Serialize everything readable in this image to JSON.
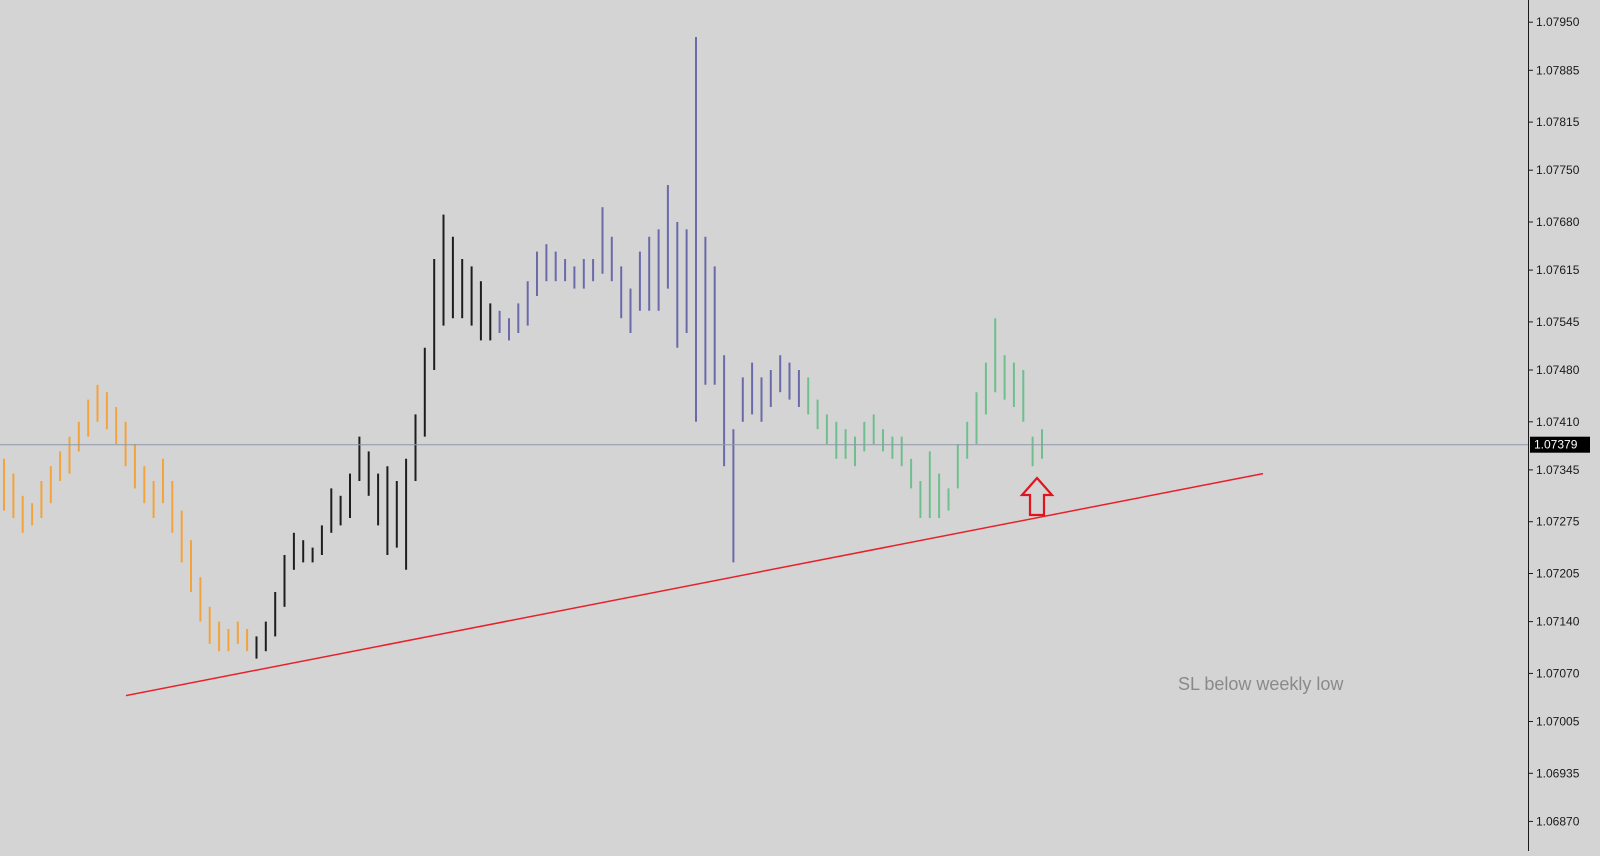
{
  "chart_data": {
    "type": "bar",
    "ylim": [
      1.0683,
      1.0798
    ],
    "grid": false,
    "legend": "none",
    "y_ticks": [
      "1.07950",
      "1.07885",
      "1.07815",
      "1.07750",
      "1.07680",
      "1.07615",
      "1.07545",
      "1.07480",
      "1.07410",
      "1.07345",
      "1.07275",
      "1.07205",
      "1.07140",
      "1.07070",
      "1.07005",
      "1.06935",
      "1.06870"
    ],
    "current_price": {
      "label": "1.07379",
      "value": 1.07379
    },
    "annotation": {
      "text": "SL below weekly low"
    },
    "trendline": {
      "x": [
        0.0,
        1.0
      ],
      "y": [
        1.0704,
        1.0734
      ],
      "note": "x normalised to bar index range"
    },
    "colors": {
      "background": "#d4d4d4",
      "axis": "#1a1a1a",
      "current_line": "#8c98a8",
      "trendline": "#e8202a",
      "arrow": "#e0141e",
      "annotation": "#8a8a8a",
      "series": [
        "#f4a23c",
        "#1e1e1e",
        "#6a6aaa",
        "#6fbf8e"
      ]
    },
    "series": [
      {
        "color_index": 0,
        "bars": [
          [
            1.0736,
            1.0729
          ],
          [
            1.0734,
            1.0728
          ],
          [
            1.0731,
            1.0726
          ],
          [
            1.073,
            1.0727
          ],
          [
            1.0733,
            1.0728
          ],
          [
            1.0735,
            1.073
          ],
          [
            1.0737,
            1.0733
          ],
          [
            1.0739,
            1.0734
          ],
          [
            1.0741,
            1.0737
          ],
          [
            1.0744,
            1.0739
          ],
          [
            1.0746,
            1.0741
          ],
          [
            1.0745,
            1.074
          ],
          [
            1.0743,
            1.0738
          ],
          [
            1.0741,
            1.0735
          ],
          [
            1.0738,
            1.0732
          ],
          [
            1.0735,
            1.073
          ],
          [
            1.0733,
            1.0728
          ],
          [
            1.0736,
            1.073
          ],
          [
            1.0733,
            1.0726
          ],
          [
            1.0729,
            1.0722
          ],
          [
            1.0725,
            1.0718
          ],
          [
            1.072,
            1.0714
          ],
          [
            1.0716,
            1.0711
          ],
          [
            1.0714,
            1.071
          ],
          [
            1.0713,
            1.071
          ],
          [
            1.0714,
            1.0711
          ],
          [
            1.0713,
            1.071
          ]
        ]
      },
      {
        "color_index": 1,
        "bars": [
          [
            1.0712,
            1.0709
          ],
          [
            1.0714,
            1.071
          ],
          [
            1.0718,
            1.0712
          ],
          [
            1.0723,
            1.0716
          ],
          [
            1.0726,
            1.0721
          ],
          [
            1.0725,
            1.0722
          ],
          [
            1.0724,
            1.0722
          ],
          [
            1.0727,
            1.0723
          ],
          [
            1.0732,
            1.0726
          ],
          [
            1.0731,
            1.0727
          ],
          [
            1.0734,
            1.0728
          ],
          [
            1.0739,
            1.0733
          ],
          [
            1.0737,
            1.0731
          ],
          [
            1.0734,
            1.0727
          ],
          [
            1.0735,
            1.0723
          ],
          [
            1.0733,
            1.0724
          ],
          [
            1.0736,
            1.0721
          ],
          [
            1.0742,
            1.0733
          ],
          [
            1.0751,
            1.0739
          ],
          [
            1.0763,
            1.0748
          ],
          [
            1.0769,
            1.0754
          ],
          [
            1.0766,
            1.0755
          ],
          [
            1.0763,
            1.0755
          ],
          [
            1.0762,
            1.0754
          ],
          [
            1.076,
            1.0752
          ],
          [
            1.0757,
            1.0752
          ]
        ]
      },
      {
        "color_index": 2,
        "bars": [
          [
            1.0756,
            1.0753
          ],
          [
            1.0755,
            1.0752
          ],
          [
            1.0757,
            1.0753
          ],
          [
            1.076,
            1.0754
          ],
          [
            1.0764,
            1.0758
          ],
          [
            1.0765,
            1.076
          ],
          [
            1.0764,
            1.076
          ],
          [
            1.0763,
            1.076
          ],
          [
            1.0762,
            1.0759
          ],
          [
            1.0763,
            1.0759
          ],
          [
            1.0763,
            1.076
          ],
          [
            1.077,
            1.0761
          ],
          [
            1.0766,
            1.076
          ],
          [
            1.0762,
            1.0755
          ],
          [
            1.0759,
            1.0753
          ],
          [
            1.0764,
            1.0756
          ],
          [
            1.0766,
            1.0756
          ],
          [
            1.0767,
            1.0756
          ],
          [
            1.0773,
            1.0759
          ],
          [
            1.0768,
            1.0751
          ],
          [
            1.0767,
            1.0753
          ],
          [
            1.0793,
            1.0741
          ],
          [
            1.0766,
            1.0746
          ],
          [
            1.0762,
            1.0746
          ],
          [
            1.075,
            1.0735
          ],
          [
            1.074,
            1.0722
          ],
          [
            1.0747,
            1.0741
          ],
          [
            1.0749,
            1.0742
          ],
          [
            1.0747,
            1.0741
          ],
          [
            1.0748,
            1.0743
          ],
          [
            1.075,
            1.0745
          ],
          [
            1.0749,
            1.0744
          ],
          [
            1.0748,
            1.0743
          ]
        ]
      },
      {
        "color_index": 3,
        "bars": [
          [
            1.0747,
            1.0742
          ],
          [
            1.0744,
            1.074
          ],
          [
            1.0742,
            1.0738
          ],
          [
            1.0741,
            1.0736
          ],
          [
            1.074,
            1.0736
          ],
          [
            1.0739,
            1.0735
          ],
          [
            1.0741,
            1.0737
          ],
          [
            1.0742,
            1.0738
          ],
          [
            1.074,
            1.0737
          ],
          [
            1.0739,
            1.0736
          ],
          [
            1.0739,
            1.0735
          ],
          [
            1.0736,
            1.0732
          ],
          [
            1.0733,
            1.0728
          ],
          [
            1.0737,
            1.0728
          ],
          [
            1.0734,
            1.0728
          ],
          [
            1.0732,
            1.0729
          ],
          [
            1.0738,
            1.0732
          ],
          [
            1.0741,
            1.0736
          ],
          [
            1.0745,
            1.0738
          ],
          [
            1.0749,
            1.0742
          ],
          [
            1.0755,
            1.0745
          ],
          [
            1.075,
            1.0744
          ],
          [
            1.0749,
            1.0743
          ],
          [
            1.0748,
            1.0741
          ],
          [
            1.0739,
            1.0735
          ],
          [
            1.074,
            1.0736
          ]
        ]
      }
    ]
  }
}
